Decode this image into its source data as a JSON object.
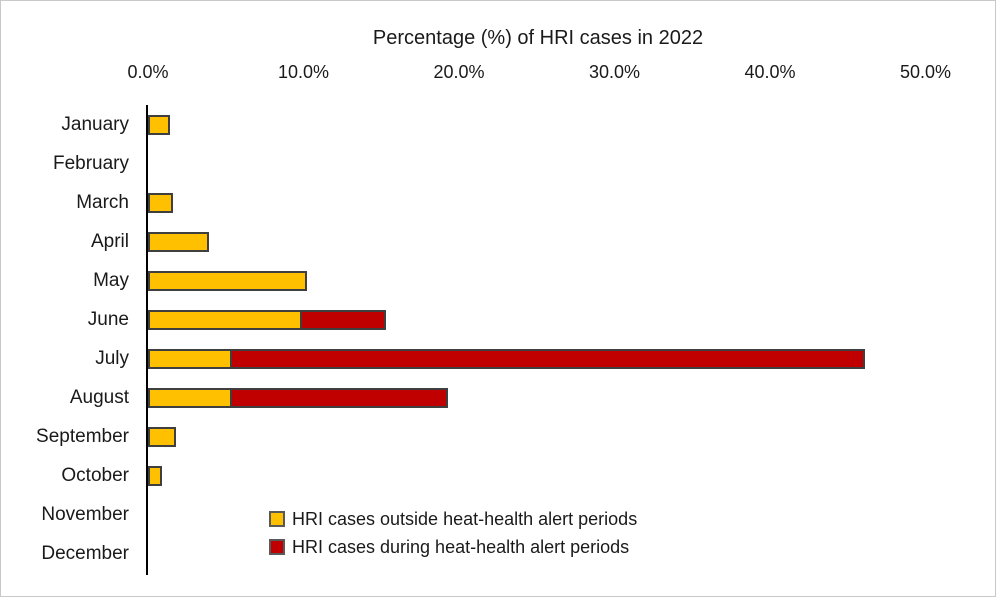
{
  "chart_data": {
    "type": "bar",
    "orientation": "horizontal",
    "stacked": true,
    "title": "Percentage (%) of HRI cases in 2022",
    "categories": [
      "January",
      "February",
      "March",
      "April",
      "May",
      "June",
      "July",
      "August",
      "September",
      "October",
      "November",
      "December"
    ],
    "series": [
      {
        "name": "HRI cases outside heat-health alert periods",
        "color": "#FFC000",
        "values": [
          1.4,
          0,
          1.6,
          3.9,
          10.2,
          9.9,
          5.4,
          5.4,
          1.8,
          0.9,
          0,
          0
        ]
      },
      {
        "name": "HRI cases during heat-health alert periods",
        "color": "#C00000",
        "values": [
          0,
          0,
          0,
          0,
          0,
          5.4,
          40.7,
          13.9,
          0,
          0,
          0,
          0
        ]
      }
    ],
    "x_axis": {
      "position": "top",
      "min": 0,
      "max": 50,
      "tick_values": [
        0,
        10,
        20,
        30,
        40,
        50
      ],
      "tick_labels": [
        "0.0%",
        "10.0%",
        "20.0%",
        "30.0%",
        "40.0%",
        "50.0%"
      ]
    },
    "grid": false,
    "legend_position": "inside-bottom",
    "colors": {
      "bar_border": "#3f3f3f",
      "axis_line": "#000000",
      "text": "#1a1a1a"
    }
  }
}
